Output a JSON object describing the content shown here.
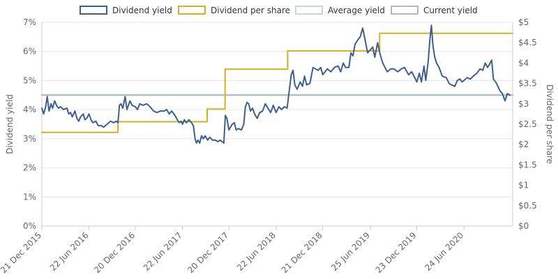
{
  "chart_data": {
    "type": "line",
    "legend": {
      "placement": "top",
      "items": [
        {
          "label": "Dividend yield",
          "color": "#3d5f8f"
        },
        {
          "label": "Dividend per share",
          "color": "#d4b024"
        },
        {
          "label": "Average yield",
          "color": "#c8d3e4"
        },
        {
          "label": "Current yield",
          "color": "#b8b8b8"
        }
      ]
    },
    "y_left": {
      "title": "Dividend yield",
      "range": [
        0,
        7
      ],
      "ticks": [
        0,
        1,
        2,
        3,
        4,
        5,
        6,
        7
      ],
      "tick_labels": [
        "0%",
        "1%",
        "2%",
        "3%",
        "4%",
        "5%",
        "6%",
        "7%"
      ]
    },
    "y_right": {
      "title": "Dividend per share",
      "range": [
        0,
        5
      ],
      "ticks": [
        0,
        0.5,
        1,
        1.5,
        2,
        2.5,
        3,
        3.5,
        4,
        4.5,
        5
      ],
      "tick_labels": [
        "$0",
        "$0.5",
        "$1",
        "$1.5",
        "$2",
        "$2.5",
        "$3",
        "$3.5",
        "$4",
        "$4.5",
        "$5"
      ]
    },
    "x_axis": {
      "range": [
        "2015-12-21",
        "2020-12-31"
      ],
      "ticks": [
        "2015-12-21",
        "2016-06-22",
        "2016-12-20",
        "2017-06-22",
        "2017-12-20",
        "2018-06-22",
        "2018-12-21",
        "2019-06-25",
        "2019-12-23",
        "2020-06-24"
      ],
      "tick_labels": [
        "21 Dec 2015",
        "22 Jun 2016",
        "20 Dec 2016",
        "22 Jun 2017",
        "20 Dec 2017",
        "22 Jun 2018",
        "21 Dec 2018",
        "25 Jun 2019",
        "23 Dec 2019",
        "24 Jun 2020"
      ]
    },
    "grid": true,
    "series": [
      {
        "name": "Dividend yield",
        "axis": "left",
        "color": "#3d5f8f",
        "points": [
          [
            "2015-12-21",
            4.05
          ],
          [
            "2015-12-28",
            3.85
          ],
          [
            "2016-01-05",
            4.1
          ],
          [
            "2016-01-11",
            4.45
          ],
          [
            "2016-01-18",
            3.95
          ],
          [
            "2016-01-26",
            4.2
          ],
          [
            "2016-02-01",
            4.05
          ],
          [
            "2016-02-09",
            4.3
          ],
          [
            "2016-02-16",
            4.15
          ],
          [
            "2016-02-24",
            4.05
          ],
          [
            "2016-03-03",
            4.1
          ],
          [
            "2016-03-14",
            4.0
          ],
          [
            "2016-03-28",
            4.05
          ],
          [
            "2016-04-04",
            3.85
          ],
          [
            "2016-04-11",
            3.9
          ],
          [
            "2016-04-18",
            3.75
          ],
          [
            "2016-04-28",
            3.95
          ],
          [
            "2016-05-06",
            3.7
          ],
          [
            "2016-05-13",
            3.6
          ],
          [
            "2016-05-20",
            3.75
          ],
          [
            "2016-05-31",
            3.85
          ],
          [
            "2016-06-06",
            3.65
          ],
          [
            "2016-06-13",
            3.7
          ],
          [
            "2016-06-22",
            3.85
          ],
          [
            "2016-06-30",
            3.65
          ],
          [
            "2016-07-07",
            3.55
          ],
          [
            "2016-07-19",
            3.6
          ],
          [
            "2016-07-28",
            3.45
          ],
          [
            "2016-08-08",
            3.45
          ],
          [
            "2016-08-18",
            3.4
          ],
          [
            "2016-09-01",
            3.5
          ],
          [
            "2016-09-14",
            3.6
          ],
          [
            "2016-09-27",
            3.55
          ],
          [
            "2016-10-06",
            3.6
          ],
          [
            "2016-10-13",
            3.55
          ],
          [
            "2016-10-19",
            4.15
          ],
          [
            "2016-10-25",
            4.2
          ],
          [
            "2016-11-01",
            4.05
          ],
          [
            "2016-11-10",
            4.45
          ],
          [
            "2016-11-17",
            4.0
          ],
          [
            "2016-11-29",
            4.3
          ],
          [
            "2016-12-07",
            4.15
          ],
          [
            "2016-12-20",
            4.1
          ],
          [
            "2016-12-28",
            4.0
          ],
          [
            "2017-01-06",
            4.2
          ],
          [
            "2017-01-19",
            4.15
          ],
          [
            "2017-02-02",
            4.2
          ],
          [
            "2017-02-15",
            4.1
          ],
          [
            "2017-03-01",
            3.95
          ],
          [
            "2017-03-14",
            3.9
          ],
          [
            "2017-03-28",
            3.95
          ],
          [
            "2017-04-11",
            3.95
          ],
          [
            "2017-04-21",
            4.0
          ],
          [
            "2017-05-01",
            3.85
          ],
          [
            "2017-05-11",
            3.95
          ],
          [
            "2017-05-23",
            3.8
          ],
          [
            "2017-06-02",
            3.65
          ],
          [
            "2017-06-09",
            3.55
          ],
          [
            "2017-06-16",
            3.6
          ],
          [
            "2017-06-22",
            3.5
          ],
          [
            "2017-06-29",
            3.65
          ],
          [
            "2017-07-07",
            3.55
          ],
          [
            "2017-07-17",
            3.65
          ],
          [
            "2017-07-27",
            3.55
          ],
          [
            "2017-08-03",
            3.45
          ],
          [
            "2017-08-10",
            3.0
          ],
          [
            "2017-08-15",
            2.85
          ],
          [
            "2017-08-21",
            2.95
          ],
          [
            "2017-08-28",
            2.85
          ],
          [
            "2017-09-04",
            3.1
          ],
          [
            "2017-09-11",
            3.0
          ],
          [
            "2017-09-18",
            3.1
          ],
          [
            "2017-09-28",
            2.95
          ],
          [
            "2017-10-06",
            3.05
          ],
          [
            "2017-10-17",
            2.95
          ],
          [
            "2017-10-28",
            2.95
          ],
          [
            "2017-11-07",
            2.9
          ],
          [
            "2017-11-16",
            2.95
          ],
          [
            "2017-11-30",
            2.85
          ],
          [
            "2017-12-06",
            3.8
          ],
          [
            "2017-12-12",
            3.7
          ],
          [
            "2017-12-20",
            3.3
          ],
          [
            "2018-01-02",
            3.5
          ],
          [
            "2018-01-10",
            3.55
          ],
          [
            "2018-01-17",
            3.3
          ],
          [
            "2018-01-26",
            3.35
          ],
          [
            "2018-02-07",
            3.3
          ],
          [
            "2018-02-16",
            3.5
          ],
          [
            "2018-02-22",
            4.1
          ],
          [
            "2018-03-01",
            4.25
          ],
          [
            "2018-03-07",
            4.2
          ],
          [
            "2018-03-14",
            3.95
          ],
          [
            "2018-03-22",
            4.05
          ],
          [
            "2018-03-30",
            3.85
          ],
          [
            "2018-04-09",
            3.7
          ],
          [
            "2018-04-19",
            3.9
          ],
          [
            "2018-04-30",
            3.95
          ],
          [
            "2018-05-11",
            4.2
          ],
          [
            "2018-05-21",
            4.05
          ],
          [
            "2018-06-01",
            3.9
          ],
          [
            "2018-06-11",
            4.15
          ],
          [
            "2018-06-22",
            3.9
          ],
          [
            "2018-07-03",
            4.1
          ],
          [
            "2018-07-13",
            4.0
          ],
          [
            "2018-07-24",
            4.1
          ],
          [
            "2018-08-04",
            4.05
          ],
          [
            "2018-08-13",
            4.7
          ],
          [
            "2018-08-20",
            5.2
          ],
          [
            "2018-08-27",
            5.35
          ],
          [
            "2018-09-03",
            4.85
          ],
          [
            "2018-09-12",
            4.7
          ],
          [
            "2018-09-24",
            4.95
          ],
          [
            "2018-10-03",
            4.8
          ],
          [
            "2018-10-11",
            5.15
          ],
          [
            "2018-10-19",
            4.85
          ],
          [
            "2018-11-01",
            4.9
          ],
          [
            "2018-11-13",
            5.45
          ],
          [
            "2018-11-22",
            5.4
          ],
          [
            "2018-12-03",
            5.35
          ],
          [
            "2018-12-13",
            5.45
          ],
          [
            "2018-12-21",
            5.2
          ],
          [
            "2019-01-08",
            5.4
          ],
          [
            "2019-01-21",
            5.3
          ],
          [
            "2019-02-05",
            5.45
          ],
          [
            "2019-02-19",
            5.5
          ],
          [
            "2019-03-01",
            5.3
          ],
          [
            "2019-03-11",
            5.6
          ],
          [
            "2019-03-20",
            5.45
          ],
          [
            "2019-04-02",
            5.45
          ],
          [
            "2019-04-10",
            5.95
          ],
          [
            "2019-04-18",
            5.85
          ],
          [
            "2019-04-26",
            6.25
          ],
          [
            "2019-05-07",
            6.4
          ],
          [
            "2019-05-16",
            6.5
          ],
          [
            "2019-05-26",
            6.8
          ],
          [
            "2019-06-04",
            6.4
          ],
          [
            "2019-06-14",
            5.95
          ],
          [
            "2019-06-24",
            6.05
          ],
          [
            "2019-07-04",
            6.15
          ],
          [
            "2019-07-12",
            5.8
          ],
          [
            "2019-07-23",
            6.3
          ],
          [
            "2019-08-02",
            5.9
          ],
          [
            "2019-08-12",
            5.6
          ],
          [
            "2019-08-21",
            5.45
          ],
          [
            "2019-08-30",
            5.3
          ],
          [
            "2019-09-12",
            5.4
          ],
          [
            "2019-09-24",
            5.4
          ],
          [
            "2019-10-10",
            5.3
          ],
          [
            "2019-10-24",
            5.4
          ],
          [
            "2019-11-05",
            5.45
          ],
          [
            "2019-11-21",
            5.2
          ],
          [
            "2019-12-03",
            5.3
          ],
          [
            "2019-12-15",
            5.1
          ],
          [
            "2019-12-23",
            4.95
          ],
          [
            "2020-01-02",
            5.25
          ],
          [
            "2020-01-10",
            4.95
          ],
          [
            "2020-01-20",
            5.5
          ],
          [
            "2020-01-27",
            5.0
          ],
          [
            "2020-02-05",
            5.6
          ],
          [
            "2020-02-12",
            6.4
          ],
          [
            "2020-02-18",
            6.9
          ],
          [
            "2020-02-24",
            6.2
          ],
          [
            "2020-03-02",
            5.8
          ],
          [
            "2020-03-09",
            5.6
          ],
          [
            "2020-03-19",
            5.45
          ],
          [
            "2020-03-31",
            5.15
          ],
          [
            "2020-04-16",
            5.1
          ],
          [
            "2020-04-27",
            4.9
          ],
          [
            "2020-05-07",
            4.85
          ],
          [
            "2020-05-19",
            4.8
          ],
          [
            "2020-05-29",
            5.0
          ],
          [
            "2020-06-08",
            5.05
          ],
          [
            "2020-06-17",
            4.95
          ],
          [
            "2020-06-24",
            5.0
          ],
          [
            "2020-07-06",
            5.1
          ],
          [
            "2020-07-19",
            5.05
          ],
          [
            "2020-07-30",
            5.15
          ],
          [
            "2020-08-13",
            5.25
          ],
          [
            "2020-08-26",
            5.4
          ],
          [
            "2020-09-05",
            5.35
          ],
          [
            "2020-09-15",
            5.6
          ],
          [
            "2020-09-24",
            5.45
          ],
          [
            "2020-10-01",
            5.55
          ],
          [
            "2020-10-10",
            5.7
          ],
          [
            "2020-10-17",
            5.05
          ],
          [
            "2020-10-29",
            4.9
          ],
          [
            "2020-11-11",
            4.65
          ],
          [
            "2020-11-21",
            4.55
          ],
          [
            "2020-12-01",
            4.3
          ],
          [
            "2020-12-10",
            4.55
          ],
          [
            "2020-12-20",
            4.5
          ]
        ]
      },
      {
        "name": "Dividend per share",
        "axis": "right",
        "color": "#d4b024",
        "step": true,
        "points": [
          [
            "2015-12-21",
            2.3
          ],
          [
            "2016-10-13",
            2.3
          ],
          [
            "2016-10-13",
            2.56
          ],
          [
            "2017-09-26",
            2.56
          ],
          [
            "2017-09-26",
            2.87
          ],
          [
            "2017-12-05",
            2.87
          ],
          [
            "2017-12-05",
            3.85
          ],
          [
            "2018-08-06",
            3.85
          ],
          [
            "2018-08-06",
            4.3
          ],
          [
            "2019-07-31",
            4.3
          ],
          [
            "2019-07-31",
            4.73
          ],
          [
            "2020-12-31",
            4.73
          ]
        ]
      },
      {
        "name": "Average yield",
        "axis": "left",
        "color": "#c8d3e4",
        "points": [
          [
            "2015-12-21",
            4.5
          ],
          [
            "2020-12-31",
            4.5
          ]
        ]
      },
      {
        "name": "Current yield",
        "axis": "left",
        "color": "#b8b8b8",
        "points": [
          [
            "2015-12-21",
            4.5
          ],
          [
            "2020-12-31",
            4.5
          ]
        ]
      }
    ]
  }
}
